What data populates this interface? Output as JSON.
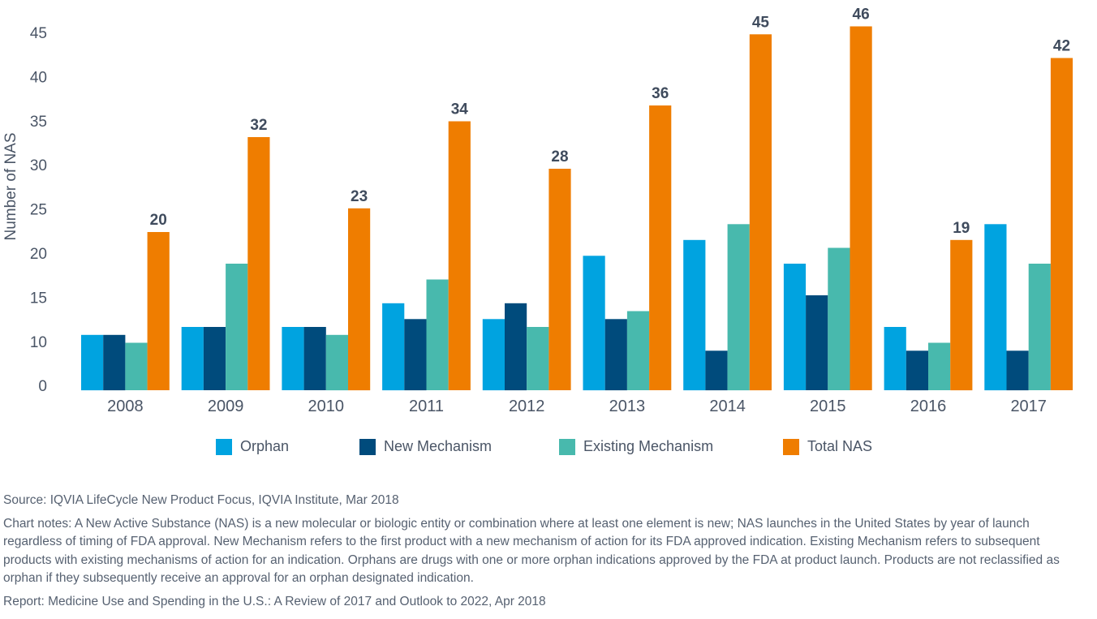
{
  "chart_data": {
    "type": "bar",
    "title": "",
    "xlabel": "",
    "ylabel": "Number of NAS",
    "ylim": [
      0,
      45
    ],
    "yticks": [
      "0",
      "10",
      "15",
      "20",
      "25",
      "30",
      "35",
      "40",
      "45"
    ],
    "grid": false,
    "legend_position": "bottom",
    "categories": [
      "2008",
      "2009",
      "2010",
      "2011",
      "2012",
      "2013",
      "2014",
      "2015",
      "2016",
      "2017"
    ],
    "series": [
      {
        "name": "Orphan",
        "color": "#00a3e0",
        "values": [
          7,
          8,
          8,
          11,
          9,
          17,
          19,
          16,
          8,
          21
        ]
      },
      {
        "name": "New Mechanism",
        "color": "#004b7c",
        "values": [
          7,
          8,
          8,
          9,
          11,
          9,
          5,
          12,
          5,
          5
        ]
      },
      {
        "name": "Existing Mechanism",
        "color": "#48b9ad",
        "values": [
          6,
          16,
          7,
          14,
          8,
          10,
          21,
          18,
          6,
          16
        ]
      },
      {
        "name": "Total NAS",
        "color": "#ef7d00",
        "values": [
          20,
          32,
          23,
          34,
          28,
          36,
          45,
          46,
          19,
          42
        ],
        "data_labels": [
          "20",
          "32",
          "23",
          "34",
          "28",
          "36",
          "45",
          "46",
          "19",
          "42"
        ]
      }
    ]
  },
  "footer": {
    "source": "Source: IQVIA LifeCycle New Product Focus, IQVIA Institute, Mar 2018",
    "notes": "Chart notes: A New Active Substance (NAS) is a new molecular or biologic entity or combination where at least one element is new; NAS launches in the United States by year of launch regardless of timing of FDA approval. New Mechanism refers to the first product with a new mechanism of action for its FDA approved indication. Existing Mechanism refers to subsequent products with existing mechanisms of action for an indication. Orphans are drugs with one or more orphan indications approved by the FDA at product launch. Products are not reclassified as orphan if they subsequently receive an approval for an orphan designated indication.",
    "report": "Report: Medicine Use and Spending in the U.S.: A Review of 2017 and Outlook to 2022, Apr 2018"
  }
}
